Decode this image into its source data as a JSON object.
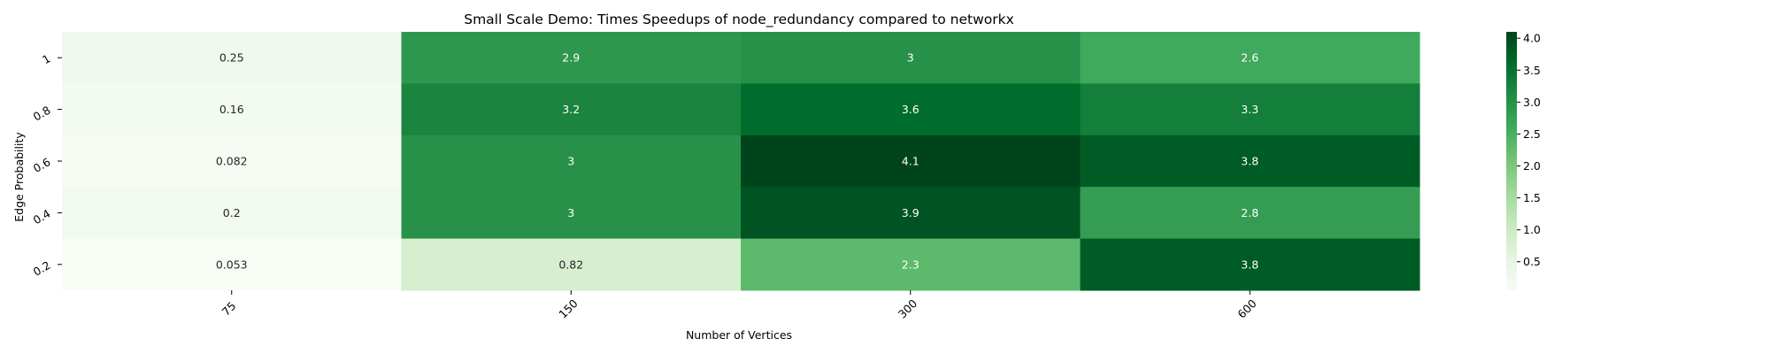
{
  "chart_data": {
    "type": "heatmap",
    "title": "Small Scale Demo: Times Speedups of node_redundancy compared to networkx",
    "xlabel": "Number of Vertices",
    "ylabel": "Edge Probability",
    "x_categories": [
      "75",
      "150",
      "300",
      "600"
    ],
    "y_categories": [
      "1",
      "0.8",
      "0.6",
      "0.4",
      "0.2"
    ],
    "values": [
      [
        0.25,
        2.9,
        3,
        2.6
      ],
      [
        0.16,
        3.2,
        3.6,
        3.3
      ],
      [
        0.082,
        3,
        4.1,
        3.8
      ],
      [
        0.2,
        3,
        3.9,
        2.8
      ],
      [
        0.053,
        0.82,
        2.3,
        3.8
      ]
    ],
    "annotations": [
      [
        "0.25",
        "2.9",
        "3",
        "2.6"
      ],
      [
        "0.16",
        "3.2",
        "3.6",
        "3.3"
      ],
      [
        "0.082",
        "3",
        "4.1",
        "3.8"
      ],
      [
        "0.2",
        "3",
        "3.9",
        "2.8"
      ],
      [
        "0.053",
        "0.82",
        "2.3",
        "3.8"
      ]
    ],
    "colormap": "Greens",
    "colorbar": {
      "vmin": 0.053,
      "vmax": 4.1,
      "ticks": [
        0.5,
        1.0,
        1.5,
        2.0,
        2.5,
        3.0,
        3.5,
        4.0
      ],
      "tick_labels": [
        "0.5",
        "1.0",
        "1.5",
        "2.0",
        "2.5",
        "3.0",
        "3.5",
        "4.0"
      ]
    },
    "grid": false,
    "legend": "colorbar-right"
  }
}
